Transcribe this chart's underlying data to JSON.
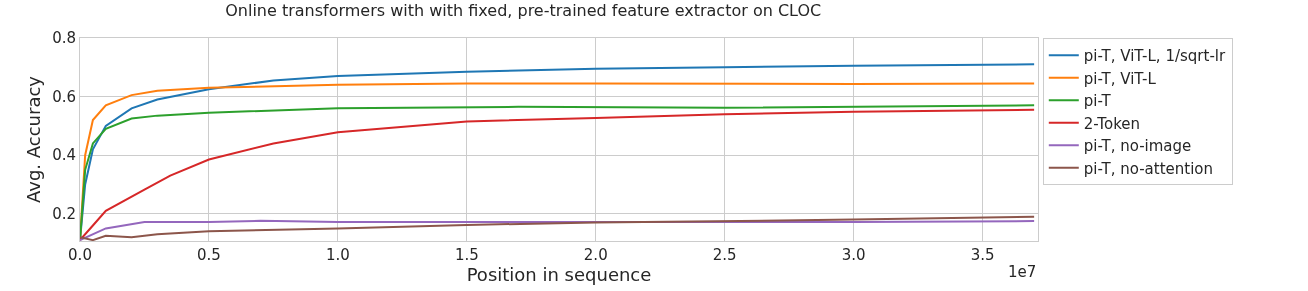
{
  "chart_data": {
    "type": "line",
    "title": "Online transformers with with fixed, pre-trained feature extractor on CLOC",
    "xlabel": "Position in sequence",
    "ylabel": "Avg. Accuracy",
    "annotations": [
      "1e7"
    ],
    "xlim": [
      0,
      3.715
    ],
    "xticks": [
      {
        "value": 0,
        "label": "0.0"
      },
      {
        "value": 0.5,
        "label": "0.5"
      },
      {
        "value": 1,
        "label": "1.0"
      },
      {
        "value": 1.5,
        "label": "1.5"
      },
      {
        "value": 2,
        "label": "2.0"
      },
      {
        "value": 2.5,
        "label": "2.5"
      },
      {
        "value": 3,
        "label": "3.0"
      },
      {
        "value": 3.5,
        "label": "3.5"
      }
    ],
    "ylim": [
      0.107,
      0.8
    ],
    "yticks": [
      0.2,
      0.4,
      0.6,
      0.8
    ],
    "grid": true,
    "legend": "right",
    "line_style": "solid",
    "marker": "none",
    "series": [
      {
        "name": "pi-T, ViT-L, 1/sqrt-lr",
        "color": "#1f77b4",
        "x": [
          0,
          0.02,
          0.05,
          0.1,
          0.2,
          0.3,
          0.5,
          0.75,
          1.0,
          1.5,
          2.0,
          2.5,
          3.0,
          3.7
        ],
        "values": [
          0.11,
          0.3,
          0.42,
          0.5,
          0.56,
          0.59,
          0.625,
          0.655,
          0.67,
          0.685,
          0.695,
          0.7,
          0.705,
          0.71
        ]
      },
      {
        "name": "pi-T, ViT-L",
        "color": "#ff7f0e",
        "x": [
          0,
          0.02,
          0.05,
          0.1,
          0.2,
          0.3,
          0.5,
          1.0,
          1.5,
          2.0,
          3.0,
          3.7
        ],
        "values": [
          0.11,
          0.4,
          0.52,
          0.57,
          0.605,
          0.62,
          0.63,
          0.64,
          0.645,
          0.645,
          0.643,
          0.645
        ]
      },
      {
        "name": "pi-T",
        "color": "#2ca02c",
        "x": [
          0,
          0.02,
          0.05,
          0.1,
          0.2,
          0.3,
          0.5,
          1.0,
          1.7,
          2.5,
          3.7
        ],
        "values": [
          0.11,
          0.35,
          0.44,
          0.49,
          0.525,
          0.535,
          0.545,
          0.56,
          0.565,
          0.562,
          0.57
        ]
      },
      {
        "name": "2-Token",
        "color": "#d62728",
        "x": [
          0,
          0.05,
          0.1,
          0.25,
          0.35,
          0.5,
          0.75,
          1.0,
          1.5,
          2.0,
          2.5,
          3.0,
          3.7
        ],
        "values": [
          0.11,
          0.16,
          0.21,
          0.282,
          0.33,
          0.385,
          0.44,
          0.478,
          0.515,
          0.527,
          0.54,
          0.548,
          0.555
        ]
      },
      {
        "name": "pi-T, no-image",
        "color": "#9467bd",
        "x": [
          0,
          0.1,
          0.25,
          0.5,
          0.7,
          1.0,
          2.0,
          3.0,
          3.7
        ],
        "values": [
          0.11,
          0.15,
          0.172,
          0.172,
          0.176,
          0.172,
          0.172,
          0.172,
          0.175
        ]
      },
      {
        "name": "pi-T, no-attention",
        "color": "#8c564b",
        "x": [
          0,
          0.05,
          0.1,
          0.2,
          0.3,
          0.5,
          1.0,
          1.5,
          2.0,
          3.0,
          3.7
        ],
        "values": [
          0.12,
          0.11,
          0.125,
          0.12,
          0.13,
          0.14,
          0.15,
          0.162,
          0.17,
          0.18,
          0.19
        ]
      }
    ]
  }
}
